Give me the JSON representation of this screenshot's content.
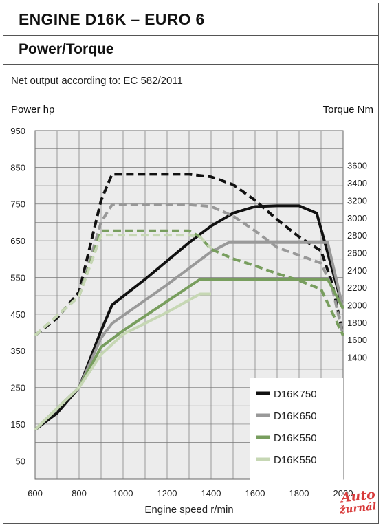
{
  "header": {
    "title": "ENGINE D16K – EURO 6",
    "subtitle": "Power/Torque",
    "note": "Net output according to: EC 582/2011"
  },
  "logo": {
    "line1": "Auto",
    "line2": "žurnál"
  },
  "chart_data": {
    "type": "line",
    "xlabel": "Engine speed r/min",
    "ylabel_left": "Power hp",
    "ylabel_right": "Torque Nm",
    "xlim": [
      600,
      2000
    ],
    "x_ticks": [
      600,
      800,
      1000,
      1200,
      1400,
      1600,
      1800,
      2000
    ],
    "ylim_left": [
      0,
      950
    ],
    "y_ticks_left": [
      50,
      150,
      250,
      350,
      450,
      550,
      650,
      750,
      850,
      950
    ],
    "ylim_right": [
      0,
      4000
    ],
    "y_ticks_right": [
      1400,
      1600,
      1800,
      2000,
      2200,
      2400,
      2600,
      2800,
      3000,
      3200,
      3400,
      3600
    ],
    "grid": true,
    "legend": {
      "position": "bottom-right",
      "entries": [
        "D16K750",
        "D16K650",
        "D16K550",
        "D16K550"
      ]
    },
    "colors": [
      "#111111",
      "#999999",
      "#789e5e",
      "#c6d7b4"
    ],
    "series": [
      {
        "name": "D16K750",
        "kind": "power",
        "axis": "left",
        "color": "#111111",
        "x": [
          600,
          700,
          800,
          900,
          950,
          1100,
          1300,
          1400,
          1500,
          1600,
          1700,
          1800,
          1880,
          2000
        ],
        "y": [
          135,
          180,
          250,
          405,
          475,
          545,
          645,
          690,
          725,
          743,
          745,
          745,
          725,
          465
        ]
      },
      {
        "name": "D16K750",
        "kind": "torque",
        "axis": "right",
        "color": "#111111",
        "x": [
          600,
          700,
          800,
          900,
          950,
          1300,
          1400,
          1500,
          1600,
          1700,
          1800,
          1900,
          1950,
          2000
        ],
        "y": [
          1650,
          1850,
          2150,
          3200,
          3500,
          3500,
          3470,
          3380,
          3200,
          2980,
          2780,
          2620,
          2250,
          1650
        ]
      },
      {
        "name": "D16K650",
        "kind": "power",
        "axis": "left",
        "color": "#999999",
        "x": [
          600,
          800,
          900,
          950,
          1200,
          1400,
          1480,
          1600,
          1800,
          1930,
          2000
        ],
        "y": [
          135,
          250,
          385,
          425,
          530,
          620,
          645,
          645,
          645,
          645,
          465
        ]
      },
      {
        "name": "D16K650",
        "kind": "torque",
        "axis": "right",
        "color": "#999999",
        "x": [
          600,
          800,
          900,
          950,
          1300,
          1400,
          1500,
          1600,
          1700,
          1800,
          1900,
          1950,
          2000
        ],
        "y": [
          1650,
          2100,
          2950,
          3150,
          3150,
          3130,
          3020,
          2850,
          2660,
          2570,
          2480,
          2200,
          1650
        ]
      },
      {
        "name": "D16K550",
        "kind": "power",
        "axis": "left",
        "color": "#789e5e",
        "x": [
          600,
          800,
          900,
          1000,
          1200,
          1350,
          1400,
          1600,
          1800,
          1930,
          2000
        ],
        "y": [
          135,
          250,
          360,
          405,
          485,
          545,
          545,
          545,
          545,
          545,
          465
        ]
      },
      {
        "name": "D16K550",
        "kind": "torque",
        "axis": "right",
        "color": "#789e5e",
        "x": [
          600,
          800,
          900,
          1000,
          1300,
          1350,
          1400,
          1500,
          1600,
          1700,
          1800,
          1900,
          2000
        ],
        "y": [
          1650,
          2100,
          2850,
          2850,
          2850,
          2780,
          2640,
          2530,
          2450,
          2360,
          2280,
          2180,
          1650
        ]
      },
      {
        "name": "D16K550",
        "kind": "power",
        "axis": "left",
        "color": "#c6d7b4",
        "x": [
          600,
          800,
          900,
          1000,
          1200,
          1350,
          1400
        ],
        "y": [
          135,
          250,
          340,
          395,
          455,
          505,
          505
        ]
      },
      {
        "name": "D16K550",
        "kind": "torque",
        "axis": "right",
        "color": "#c6d7b4",
        "x": [
          600,
          800,
          900,
          1000,
          1300,
          1350,
          1400
        ],
        "y": [
          1650,
          2100,
          2800,
          2800,
          2800,
          2780,
          2650
        ]
      }
    ]
  }
}
